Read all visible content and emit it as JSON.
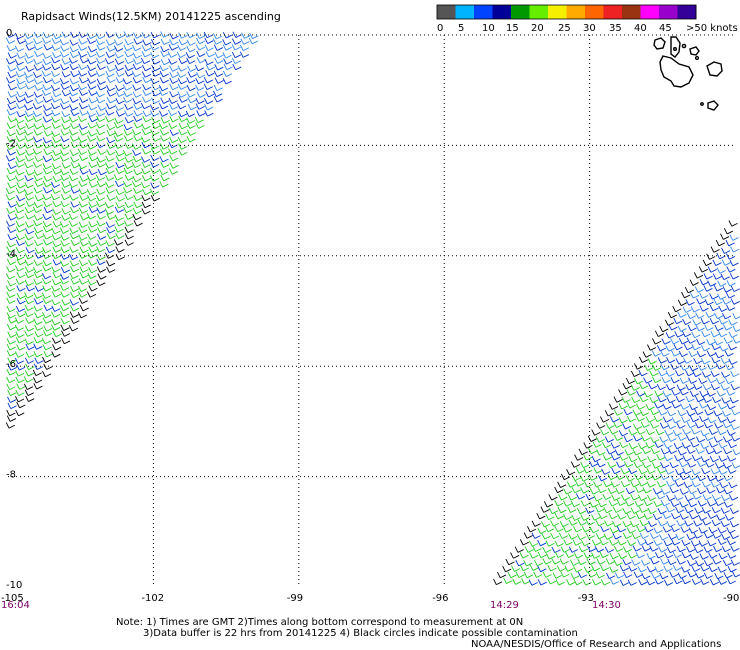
{
  "title": "Rapidsact Winds(12.5KM) 20141225 ascending",
  "legend": {
    "bins": [
      {
        "color": "#555555"
      },
      {
        "color": "#00b4ff"
      },
      {
        "color": "#0044ff"
      },
      {
        "color": "#000099"
      },
      {
        "color": "#009900"
      },
      {
        "color": "#66ee00"
      },
      {
        "color": "#f5f000"
      },
      {
        "color": "#ffaa00"
      },
      {
        "color": "#ff6600"
      },
      {
        "color": "#ee2222"
      },
      {
        "color": "#993311"
      },
      {
        "color": "#ff00ff"
      },
      {
        "color": "#9900cc"
      },
      {
        "color": "#330099"
      }
    ],
    "tick_labels": [
      "0",
      "5",
      "10",
      "15",
      "20",
      "25",
      "30",
      "35",
      "40",
      "45",
      ">50 knots"
    ]
  },
  "map": {
    "lon_range": [
      -105,
      -90
    ],
    "lat_range": [
      -10,
      0
    ],
    "lon_ticks": [
      "-105",
      "-102",
      "-99",
      "-96",
      "-93",
      "-90"
    ],
    "lat_ticks": [
      "0",
      "-2",
      "-4",
      "-6",
      "-8",
      "-10"
    ],
    "time_labels": [
      "16:04",
      "14:29",
      "14:30"
    ]
  },
  "wind_colors": {
    "blue": "#0033cc",
    "light_blue": "#3388ee",
    "green": "#22cc22",
    "black": "#000000"
  },
  "notes": {
    "line1": "Note: 1) Times are GMT 2)Times along bottom correspond to measurement at 0N",
    "line2": "3)Data buffer is 22 hrs from 20141225 4) Black circles indicate possible contamination",
    "credit": "NOAA/NESDIS/Office of Research and Applications"
  }
}
